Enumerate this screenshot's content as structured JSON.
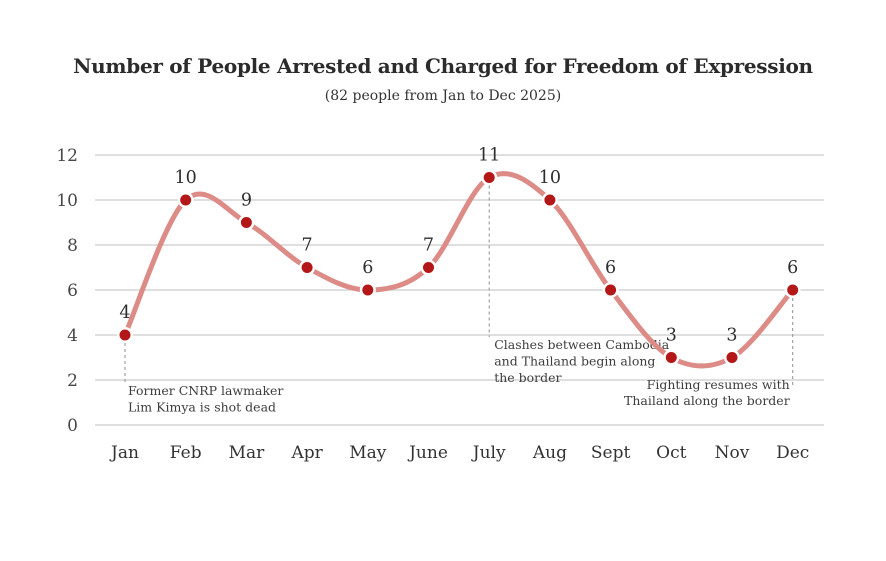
{
  "chart_data": {
    "type": "line",
    "title": "Number of People Arrested and Charged for Freedom of Expression",
    "subtitle": "(82 people from Jan to Dec 2025)",
    "categories": [
      "Jan",
      "Feb",
      "Mar",
      "Apr",
      "May",
      "June",
      "July",
      "Aug",
      "Sept",
      "Oct",
      "Nov",
      "Dec"
    ],
    "values": [
      4,
      10,
      9,
      7,
      6,
      7,
      11,
      10,
      6,
      3,
      3,
      6
    ],
    "total_people": 82,
    "xlabel": "",
    "ylabel": "",
    "ylim": [
      0,
      12
    ],
    "yticks": [
      0,
      2,
      4,
      6,
      8,
      10,
      12
    ],
    "grid": "horizontal",
    "legend_position": "none",
    "line_style": "smooth-spline",
    "marker": "filled-circle",
    "colors": {
      "line": "#dd8b86",
      "marker": "#b31717",
      "gridline": "#cccccc",
      "tick_label": "#474747",
      "data_label": "#2e2e2e",
      "title": "#2b2b2b",
      "annotation_text": "#3d3d3d",
      "annotation_line": "#8f8f8f",
      "background": "#ffffff"
    },
    "annotations": [
      {
        "month": "Jan",
        "value": 4,
        "align": "left",
        "lines": [
          "Former CNRP lawmaker",
          "Lim Kimya is shot dead"
        ]
      },
      {
        "month": "July",
        "value": 11,
        "align": "left",
        "lines": [
          "Clashes between Cambodia",
          "and Thailand begin along",
          "the border"
        ]
      },
      {
        "month": "Dec",
        "value": 6,
        "align": "right",
        "lines": [
          "Fighting resumes with",
          "Thailand along the border"
        ]
      }
    ]
  }
}
